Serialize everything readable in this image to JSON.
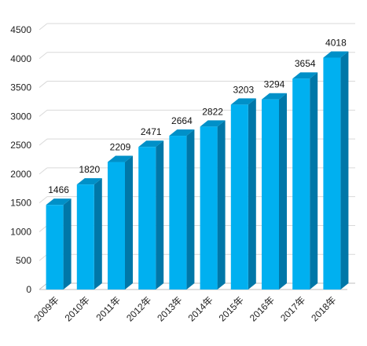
{
  "chart_data": {
    "type": "bar",
    "title": "",
    "xlabel": "",
    "ylabel": "",
    "categories": [
      "2009年",
      "2010年",
      "2011年",
      "2012年",
      "2013年",
      "2014年",
      "2015年",
      "2016年",
      "2017年",
      "2018年"
    ],
    "values": [
      1466,
      1820,
      2209,
      2471,
      2664,
      2822,
      3203,
      3294,
      3654,
      4018
    ],
    "data_labels": [
      "1466",
      "1820",
      "2209",
      "2471",
      "2664",
      "2822",
      "3203",
      "3294",
      "3654",
      "4018"
    ],
    "ylim": [
      0,
      4500
    ],
    "yticks": [
      0,
      500,
      1000,
      1500,
      2000,
      2500,
      3000,
      3500,
      4000,
      4500
    ],
    "ytick_labels": [
      "0",
      "500",
      "1000",
      "1500",
      "2000",
      "2500",
      "3000",
      "3500",
      "4000",
      "4500"
    ],
    "grid": true,
    "legend": "none",
    "style": "3d-bar",
    "colors": {
      "bar_front": "#00B0F0",
      "bar_side": "#0077A8",
      "bar_top": "#0090C8",
      "grid": "#D9D9D9",
      "floor": "#BFBFBF"
    }
  }
}
